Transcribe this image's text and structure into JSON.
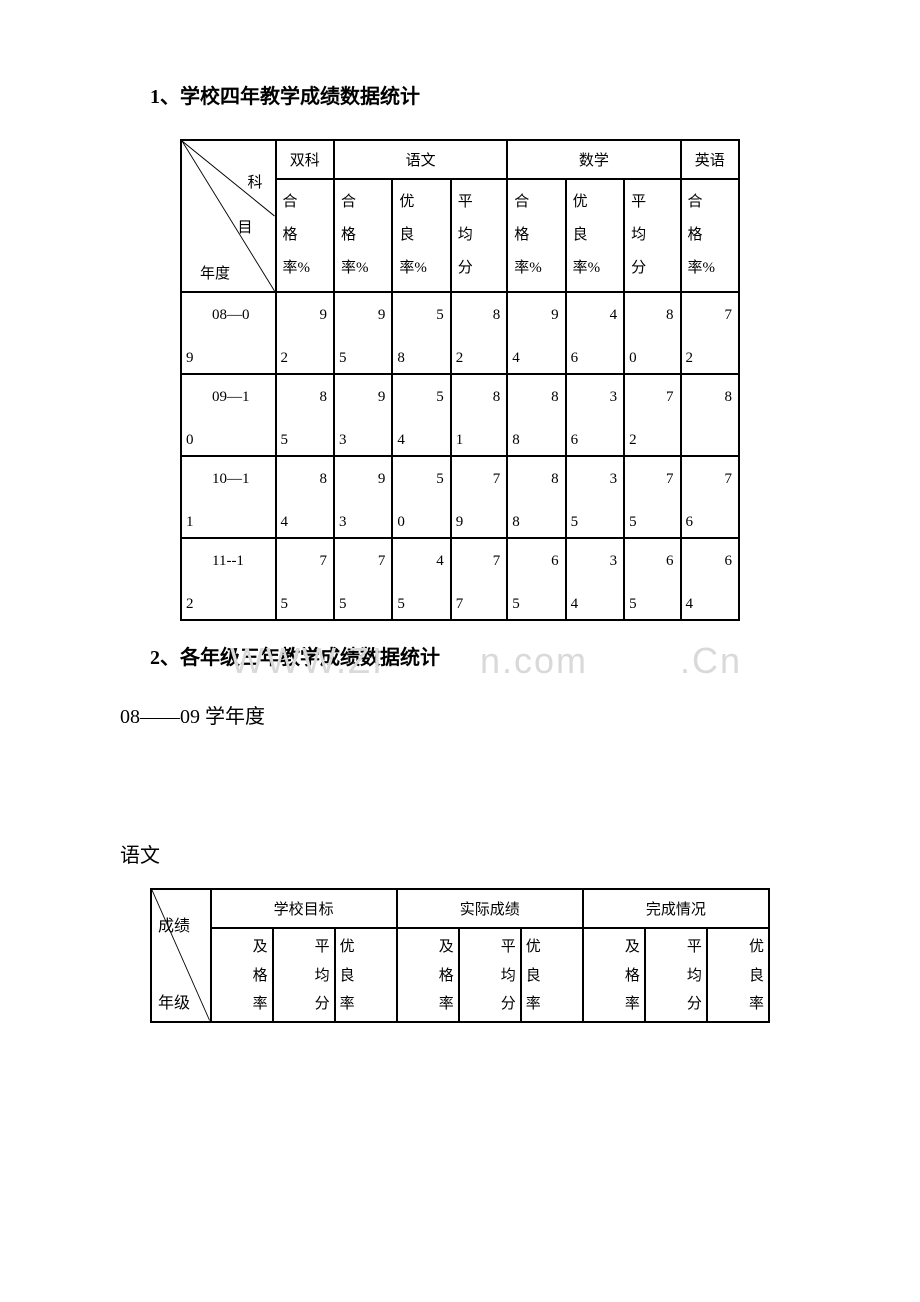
{
  "section1_title": "1、学校四年教学成绩数据统计",
  "section2_title": "2、各年级三年教学成绩数据统计",
  "year_label": "08——09 学年度",
  "subject_label": "语文",
  "table1": {
    "diag_labels": {
      "top": "科",
      "mid": "目",
      "bottom": "年度"
    },
    "group_headers": {
      "shuangke": "双科",
      "yuwen": "语文",
      "shuxue": "数学",
      "yingyu": "英语"
    },
    "col_labels": {
      "sk_hegelv": "合\n格\n率%",
      "yw_hegelv": "合\n格\n率%",
      "yw_youliang": "优\n良\n率%",
      "yw_pingjun": "平\n均\n分",
      "sx_hegelv": "合\n格\n率%",
      "sx_youliang": "优\n良\n率%",
      "sx_pingjun": "平\n均\n分",
      "yy_hegelv": "合\n格\n率%"
    },
    "rows": [
      {
        "year_a": "08—0",
        "year_b": "9",
        "cells": [
          {
            "a": "9",
            "b": "2"
          },
          {
            "a": "9",
            "b": "5"
          },
          {
            "a": "5",
            "b": "8"
          },
          {
            "a": "8",
            "b": "2"
          },
          {
            "a": "9",
            "b": "4"
          },
          {
            "a": "4",
            "b": "6"
          },
          {
            "a": "8",
            "b": "0"
          },
          {
            "a": "7",
            "b": "2"
          }
        ]
      },
      {
        "year_a": "09—1",
        "year_b": "0",
        "cells": [
          {
            "a": "8",
            "b": "5"
          },
          {
            "a": "9",
            "b": "3"
          },
          {
            "a": "5",
            "b": "4"
          },
          {
            "a": "8",
            "b": "1"
          },
          {
            "a": "8",
            "b": "8"
          },
          {
            "a": "3",
            "b": "6"
          },
          {
            "a": "7",
            "b": "2"
          },
          {
            "a": "8",
            "b": ""
          }
        ]
      },
      {
        "year_a": "10—1",
        "year_b": "1",
        "cells": [
          {
            "a": "8",
            "b": "4"
          },
          {
            "a": "9",
            "b": "3"
          },
          {
            "a": "5",
            "b": "0"
          },
          {
            "a": "7",
            "b": "9"
          },
          {
            "a": "8",
            "b": "8"
          },
          {
            "a": "3",
            "b": "5"
          },
          {
            "a": "7",
            "b": "5"
          },
          {
            "a": "7",
            "b": "6"
          }
        ]
      },
      {
        "year_a": "11--1",
        "year_b": "2",
        "cells": [
          {
            "a": "7",
            "b": "5"
          },
          {
            "a": "7",
            "b": "5"
          },
          {
            "a": "4",
            "b": "5"
          },
          {
            "a": "7",
            "b": "7"
          },
          {
            "a": "6",
            "b": "5"
          },
          {
            "a": "3",
            "b": "4"
          },
          {
            "a": "6",
            "b": "5"
          },
          {
            "a": "6",
            "b": "4"
          }
        ]
      }
    ]
  },
  "table2": {
    "diag_labels": {
      "top": "成绩",
      "bottom": "年级"
    },
    "group_headers": {
      "g1": "学校目标",
      "g2": "实际成绩",
      "g3": "完成情况"
    },
    "col_labels": {
      "c1": "及\n格\n率",
      "c2": "平\n均\n分",
      "c3": "优\n良\n率",
      "c4": "及\n格\n率",
      "c5": "平\n均\n分",
      "c6": "优\n良\n率",
      "c7": "及\n格\n率",
      "c8": "平\n均\n分",
      "c9": "优\n良\n率"
    }
  },
  "watermark_left": "WWW.ZI",
  "watermark_mid": "n.com",
  "watermark_right": ".Cn"
}
